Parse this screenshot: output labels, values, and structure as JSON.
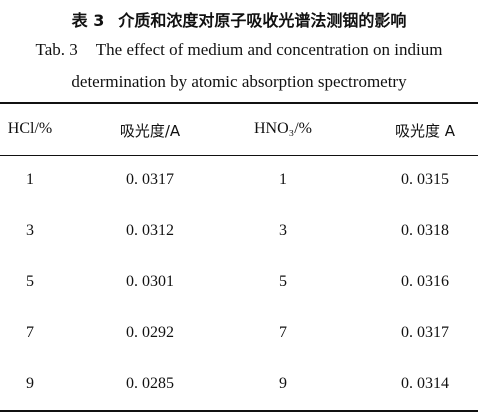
{
  "title_zh": {
    "label": "表 3",
    "text": "介质和浓度对原子吸收光谱法测铟的影响"
  },
  "caption_en": {
    "label": "Tab. 3",
    "lines": [
      "The effect of medium and concentration on indium",
      "determination by atomic absorption spectrometry"
    ]
  },
  "table": {
    "header": [
      "HCl/%",
      "吸光度/A",
      "HNO₃/%",
      "吸光度 A"
    ],
    "rows": [
      [
        "1",
        "0. 0317",
        "1",
        "0. 0315"
      ],
      [
        "3",
        "0. 0312",
        "3",
        "0. 0318"
      ],
      [
        "5",
        "0. 0301",
        "5",
        "0. 0316"
      ],
      [
        "7",
        "0. 0292",
        "7",
        "0. 0317"
      ],
      [
        "9",
        "0. 0285",
        "9",
        "0. 0314"
      ]
    ]
  }
}
